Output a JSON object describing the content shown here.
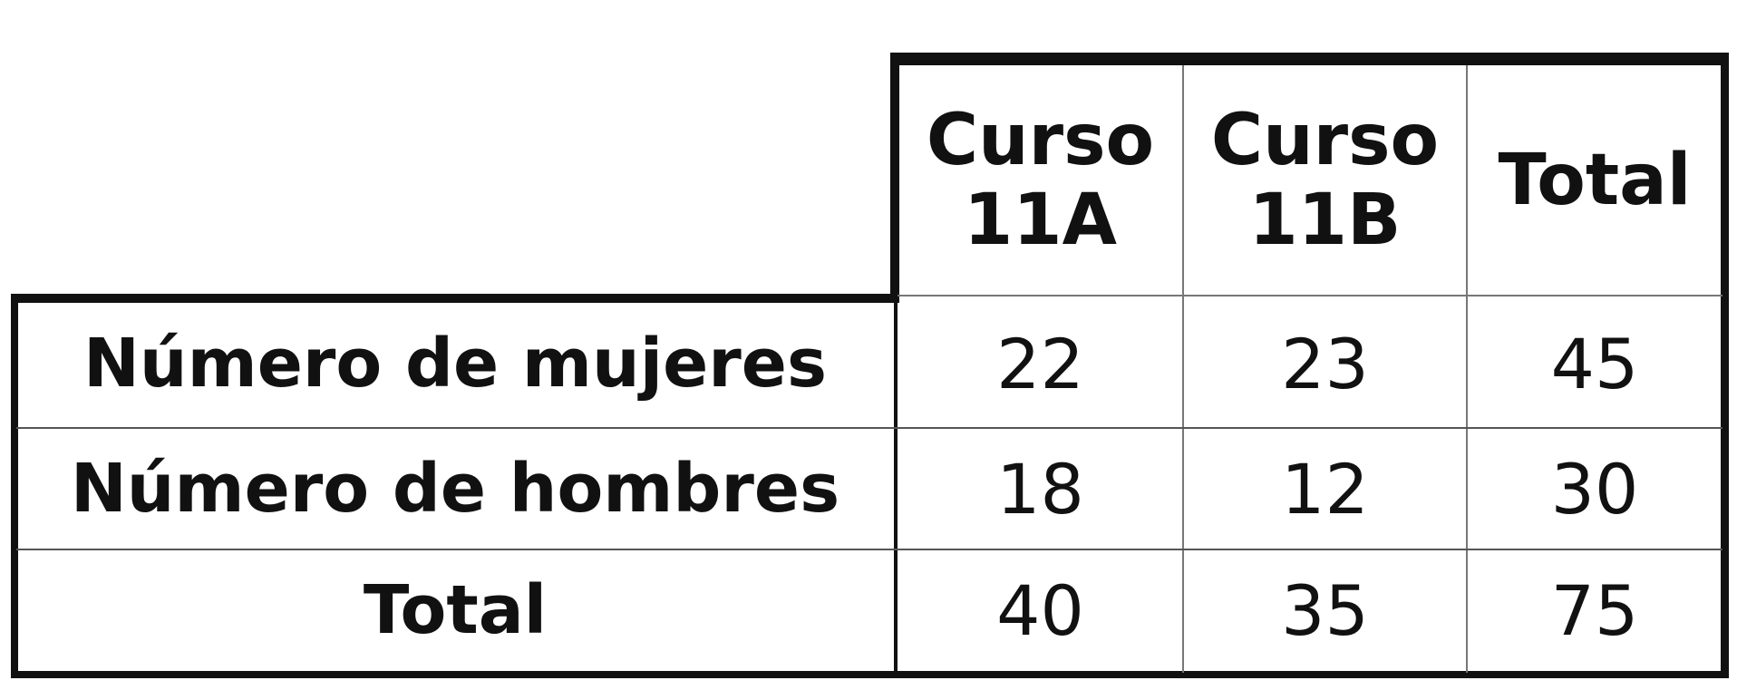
{
  "table": {
    "headers": [
      {
        "line1": "Curso",
        "line2": "11A"
      },
      {
        "line1": "Curso",
        "line2": "11B"
      },
      {
        "line1": "Total",
        "line2": ""
      }
    ],
    "rows": [
      {
        "label": "Número de mujeres",
        "values": [
          "22",
          "23",
          "45"
        ]
      },
      {
        "label": "Número de hombres",
        "values": [
          "18",
          "12",
          "30"
        ]
      },
      {
        "label": "Total",
        "values": [
          "40",
          "35",
          "75"
        ]
      }
    ]
  }
}
